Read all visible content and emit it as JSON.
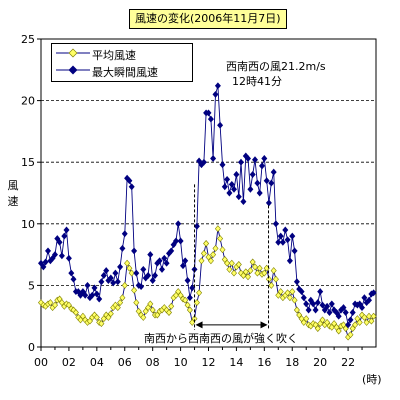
{
  "chart_data": {
    "type": "line",
    "title": "風速の変化(2006年11月7日)",
    "ylabel": "風速",
    "xunit": "(時)",
    "xlim": [
      0,
      24
    ],
    "ylim": [
      0,
      25
    ],
    "xticks": [
      "00",
      "02",
      "04",
      "06",
      "08",
      "10",
      "12",
      "14",
      "16",
      "18",
      "20",
      "22"
    ],
    "yticks": [
      0,
      5,
      10,
      15,
      20,
      25
    ],
    "grid": "horizontal dashed",
    "legend_position": "top-left",
    "colors": {
      "avg_fill": "#ffff66",
      "max_fill": "#000080",
      "line": "#000080"
    },
    "annotation_peak": {
      "line1": "西南西の風21.2m/s",
      "line2": "12時41分",
      "x": 12.7,
      "y": 21.2
    },
    "annotation_range": {
      "label": "南西から西南西の風が強く吹く",
      "from": 11.0,
      "to": 16.3
    },
    "series": [
      {
        "name": "平均風速",
        "marker": "diamond-yellow",
        "points": [
          [
            0.0,
            3.6
          ],
          [
            0.17,
            3.4
          ],
          [
            0.33,
            3.3
          ],
          [
            0.5,
            3.5
          ],
          [
            0.67,
            3.6
          ],
          [
            0.83,
            3.2
          ],
          [
            1.0,
            3.4
          ],
          [
            1.17,
            3.8
          ],
          [
            1.33,
            3.9
          ],
          [
            1.5,
            3.6
          ],
          [
            1.67,
            3.3
          ],
          [
            1.83,
            3.5
          ],
          [
            2.0,
            3.4
          ],
          [
            2.17,
            3.1
          ],
          [
            2.33,
            3.0
          ],
          [
            2.5,
            2.8
          ],
          [
            2.67,
            2.4
          ],
          [
            2.83,
            2.2
          ],
          [
            3.0,
            2.5
          ],
          [
            3.17,
            2.2
          ],
          [
            3.33,
            2.0
          ],
          [
            3.5,
            2.1
          ],
          [
            3.67,
            2.4
          ],
          [
            3.83,
            2.6
          ],
          [
            4.0,
            2.4
          ],
          [
            4.17,
            2.0
          ],
          [
            4.33,
            1.9
          ],
          [
            4.5,
            2.3
          ],
          [
            4.67,
            2.6
          ],
          [
            4.83,
            2.4
          ],
          [
            5.0,
            2.7
          ],
          [
            5.17,
            3.2
          ],
          [
            5.33,
            3.4
          ],
          [
            5.5,
            3.2
          ],
          [
            5.67,
            3.6
          ],
          [
            5.83,
            4.0
          ],
          [
            6.0,
            5.0
          ],
          [
            6.17,
            6.8
          ],
          [
            6.33,
            6.4
          ],
          [
            6.5,
            6.0
          ],
          [
            6.67,
            4.6
          ],
          [
            6.83,
            3.6
          ],
          [
            7.0,
            2.9
          ],
          [
            7.17,
            2.6
          ],
          [
            7.33,
            2.4
          ],
          [
            7.5,
            2.9
          ],
          [
            7.67,
            3.2
          ],
          [
            7.83,
            3.5
          ],
          [
            8.0,
            3.0
          ],
          [
            8.17,
            2.6
          ],
          [
            8.33,
            2.6
          ],
          [
            8.5,
            2.9
          ],
          [
            8.67,
            3.0
          ],
          [
            8.83,
            3.2
          ],
          [
            9.0,
            3.0
          ],
          [
            9.17,
            2.8
          ],
          [
            9.33,
            3.3
          ],
          [
            9.5,
            4.0
          ],
          [
            9.67,
            4.2
          ],
          [
            9.83,
            4.5
          ],
          [
            10.0,
            4.2
          ],
          [
            10.17,
            3.9
          ],
          [
            10.33,
            3.8
          ],
          [
            10.5,
            3.4
          ],
          [
            10.67,
            3.0
          ],
          [
            10.83,
            2.0
          ],
          [
            11.0,
            2.3
          ],
          [
            11.17,
            3.6
          ],
          [
            11.33,
            4.4
          ],
          [
            11.5,
            7.0
          ],
          [
            11.67,
            7.6
          ],
          [
            11.83,
            8.4
          ],
          [
            12.0,
            7.3
          ],
          [
            12.17,
            7.0
          ],
          [
            12.33,
            7.5
          ],
          [
            12.5,
            8.0
          ],
          [
            12.67,
            9.6
          ],
          [
            12.83,
            8.8
          ],
          [
            13.0,
            7.9
          ],
          [
            13.17,
            7.1
          ],
          [
            13.33,
            6.8
          ],
          [
            13.5,
            6.3
          ],
          [
            13.67,
            6.8
          ],
          [
            13.83,
            6.0
          ],
          [
            14.0,
            6.5
          ],
          [
            14.17,
            6.7
          ],
          [
            14.33,
            6.0
          ],
          [
            14.5,
            5.8
          ],
          [
            14.67,
            6.1
          ],
          [
            14.83,
            5.7
          ],
          [
            15.0,
            6.2
          ],
          [
            15.17,
            6.9
          ],
          [
            15.33,
            6.5
          ],
          [
            15.5,
            6.0
          ],
          [
            15.67,
            6.4
          ],
          [
            15.83,
            5.9
          ],
          [
            16.0,
            6.0
          ],
          [
            16.17,
            6.4
          ],
          [
            16.33,
            5.5
          ],
          [
            16.5,
            5.0
          ],
          [
            16.67,
            6.2
          ],
          [
            16.83,
            5.5
          ],
          [
            17.0,
            4.2
          ],
          [
            17.17,
            4.5
          ],
          [
            17.33,
            4.0
          ],
          [
            17.5,
            4.2
          ],
          [
            17.67,
            4.4
          ],
          [
            17.83,
            4.0
          ],
          [
            18.0,
            4.5
          ],
          [
            18.17,
            3.8
          ],
          [
            18.33,
            3.0
          ],
          [
            18.5,
            2.6
          ],
          [
            18.67,
            2.3
          ],
          [
            18.83,
            2.0
          ],
          [
            19.0,
            2.3
          ],
          [
            19.17,
            1.8
          ],
          [
            19.33,
            1.7
          ],
          [
            19.5,
            1.9
          ],
          [
            19.67,
            1.8
          ],
          [
            19.83,
            1.5
          ],
          [
            20.0,
            1.9
          ],
          [
            20.17,
            2.2
          ],
          [
            20.33,
            1.8
          ],
          [
            20.5,
            2.0
          ],
          [
            20.67,
            1.7
          ],
          [
            20.83,
            1.6
          ],
          [
            21.0,
            1.9
          ],
          [
            21.17,
            1.6
          ],
          [
            21.33,
            1.3
          ],
          [
            21.5,
            1.7
          ],
          [
            21.67,
            1.8
          ],
          [
            21.83,
            1.5
          ],
          [
            22.0,
            0.8
          ],
          [
            22.17,
            1.0
          ],
          [
            22.33,
            1.5
          ],
          [
            22.5,
            1.8
          ],
          [
            22.67,
            2.3
          ],
          [
            22.83,
            2.0
          ],
          [
            23.0,
            2.6
          ],
          [
            23.17,
            2.4
          ],
          [
            23.33,
            2.0
          ],
          [
            23.5,
            2.5
          ],
          [
            23.67,
            2.1
          ],
          [
            23.83,
            2.5
          ]
        ]
      },
      {
        "name": "最大瞬間風速",
        "marker": "diamond-navy",
        "points": [
          [
            0.0,
            6.8
          ],
          [
            0.17,
            6.5
          ],
          [
            0.33,
            6.9
          ],
          [
            0.5,
            7.8
          ],
          [
            0.67,
            7.0
          ],
          [
            0.83,
            7.2
          ],
          [
            1.0,
            7.5
          ],
          [
            1.17,
            8.8
          ],
          [
            1.33,
            8.5
          ],
          [
            1.5,
            7.4
          ],
          [
            1.67,
            9.0
          ],
          [
            1.83,
            9.5
          ],
          [
            2.0,
            7.2
          ],
          [
            2.17,
            6.0
          ],
          [
            2.33,
            5.5
          ],
          [
            2.5,
            4.5
          ],
          [
            2.67,
            4.5
          ],
          [
            2.83,
            4.2
          ],
          [
            3.0,
            4.5
          ],
          [
            3.17,
            4.2
          ],
          [
            3.33,
            5.0
          ],
          [
            3.5,
            4.0
          ],
          [
            3.67,
            4.2
          ],
          [
            3.83,
            4.8
          ],
          [
            4.0,
            4.3
          ],
          [
            4.17,
            3.9
          ],
          [
            4.33,
            5.3
          ],
          [
            4.5,
            5.8
          ],
          [
            4.67,
            6.2
          ],
          [
            4.83,
            5.4
          ],
          [
            5.0,
            5.6
          ],
          [
            5.17,
            5.2
          ],
          [
            5.33,
            6.0
          ],
          [
            5.5,
            5.3
          ],
          [
            5.67,
            6.5
          ],
          [
            5.83,
            8.0
          ],
          [
            6.0,
            9.2
          ],
          [
            6.17,
            13.7
          ],
          [
            6.33,
            13.5
          ],
          [
            6.5,
            13.0
          ],
          [
            6.67,
            7.8
          ],
          [
            6.83,
            6.0
          ],
          [
            7.0,
            5.0
          ],
          [
            7.17,
            4.9
          ],
          [
            7.33,
            6.3
          ],
          [
            7.5,
            5.6
          ],
          [
            7.67,
            5.8
          ],
          [
            7.83,
            7.5
          ],
          [
            8.0,
            5.4
          ],
          [
            8.17,
            5.8
          ],
          [
            8.33,
            6.8
          ],
          [
            8.5,
            7.0
          ],
          [
            8.67,
            6.3
          ],
          [
            8.83,
            7.2
          ],
          [
            9.0,
            6.8
          ],
          [
            9.17,
            7.6
          ],
          [
            9.33,
            7.8
          ],
          [
            9.5,
            8.3
          ],
          [
            9.67,
            8.6
          ],
          [
            9.83,
            10.0
          ],
          [
            10.0,
            8.6
          ],
          [
            10.17,
            6.6
          ],
          [
            10.33,
            7.0
          ],
          [
            10.5,
            5.4
          ],
          [
            10.67,
            4.0
          ],
          [
            10.83,
            4.8
          ],
          [
            11.0,
            6.3
          ],
          [
            11.17,
            9.8
          ],
          [
            11.33,
            15.1
          ],
          [
            11.5,
            14.8
          ],
          [
            11.67,
            15.0
          ],
          [
            11.83,
            19.0
          ],
          [
            12.0,
            19.0
          ],
          [
            12.17,
            18.5
          ],
          [
            12.33,
            15.3
          ],
          [
            12.5,
            20.5
          ],
          [
            12.67,
            21.2
          ],
          [
            12.83,
            18.0
          ],
          [
            13.0,
            14.8
          ],
          [
            13.17,
            13.0
          ],
          [
            13.33,
            13.6
          ],
          [
            13.5,
            12.5
          ],
          [
            13.67,
            13.2
          ],
          [
            13.83,
            12.8
          ],
          [
            14.0,
            14.0
          ],
          [
            14.17,
            12.2
          ],
          [
            14.33,
            15.0
          ],
          [
            14.5,
            11.8
          ],
          [
            14.67,
            15.5
          ],
          [
            14.83,
            15.3
          ],
          [
            15.0,
            12.8
          ],
          [
            15.17,
            14.0
          ],
          [
            15.33,
            15.2
          ],
          [
            15.5,
            13.3
          ],
          [
            15.67,
            12.5
          ],
          [
            15.83,
            14.7
          ],
          [
            16.0,
            15.3
          ],
          [
            16.17,
            13.5
          ],
          [
            16.33,
            11.7
          ],
          [
            16.5,
            13.3
          ],
          [
            16.67,
            14.2
          ],
          [
            16.83,
            10.0
          ],
          [
            17.0,
            8.5
          ],
          [
            17.17,
            9.0
          ],
          [
            17.33,
            8.5
          ],
          [
            17.5,
            9.5
          ],
          [
            17.67,
            8.7
          ],
          [
            17.83,
            7.0
          ],
          [
            18.0,
            9.0
          ],
          [
            18.17,
            7.8
          ],
          [
            18.33,
            5.3
          ],
          [
            18.5,
            4.7
          ],
          [
            18.67,
            4.5
          ],
          [
            18.83,
            4.0
          ],
          [
            19.0,
            3.5
          ],
          [
            19.17,
            3.0
          ],
          [
            19.33,
            3.8
          ],
          [
            19.5,
            3.5
          ],
          [
            19.67,
            3.0
          ],
          [
            19.83,
            3.6
          ],
          [
            20.0,
            4.5
          ],
          [
            20.17,
            3.4
          ],
          [
            20.33,
            3.0
          ],
          [
            20.5,
            3.3
          ],
          [
            20.67,
            2.8
          ],
          [
            20.83,
            3.5
          ],
          [
            21.0,
            3.0
          ],
          [
            21.17,
            2.8
          ],
          [
            21.33,
            2.5
          ],
          [
            21.5,
            3.0
          ],
          [
            21.67,
            3.2
          ],
          [
            21.83,
            2.8
          ],
          [
            22.0,
            1.8
          ],
          [
            22.17,
            2.2
          ],
          [
            22.33,
            2.8
          ],
          [
            22.5,
            3.5
          ],
          [
            22.67,
            3.4
          ],
          [
            22.83,
            3.5
          ],
          [
            23.0,
            3.2
          ],
          [
            23.17,
            4.0
          ],
          [
            23.33,
            3.6
          ],
          [
            23.5,
            3.8
          ],
          [
            23.67,
            4.3
          ],
          [
            23.83,
            4.4
          ]
        ]
      }
    ]
  }
}
